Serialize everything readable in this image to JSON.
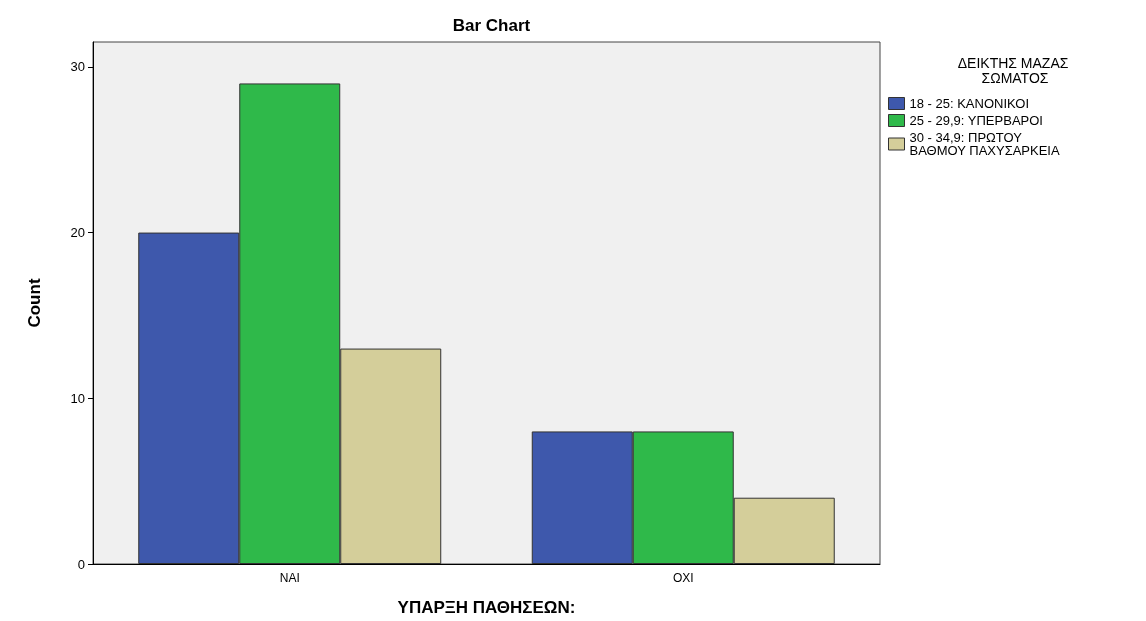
{
  "chart_data": {
    "type": "bar",
    "title": "Bar Chart",
    "xlabel": "ΥΠΑΡΞΗ ΠΑΘΗΣΕΩΝ:",
    "ylabel": "Count",
    "legend_title": "ΔΕΙΚΤΗΣ ΜΑΖΑΣ ΣΩΜΑΤΟΣ",
    "categories": [
      "ΝΑΙ",
      "ΟΧΙ"
    ],
    "series": [
      {
        "name": "18 - 25: ΚΑΝΟΝΙΚΟΙ",
        "color": "#3e58ac",
        "values": [
          20,
          8
        ]
      },
      {
        "name": "25 - 29,9: ΥΠΕΡΒΑΡΟΙ",
        "color": "#2fb94a",
        "values": [
          29,
          8
        ]
      },
      {
        "name": "30 - 34,9: ΠΡΩΤΟΥ ΒΑΘΜΟΥ ΠΑΧΥΣΑΡΚΕΙΑ",
        "color": "#d4ce9a",
        "values": [
          13,
          4
        ]
      }
    ],
    "ylim": [
      0,
      31.5
    ],
    "yticks": [
      0,
      10,
      20,
      30
    ],
    "grid": false,
    "legend": "top right"
  }
}
